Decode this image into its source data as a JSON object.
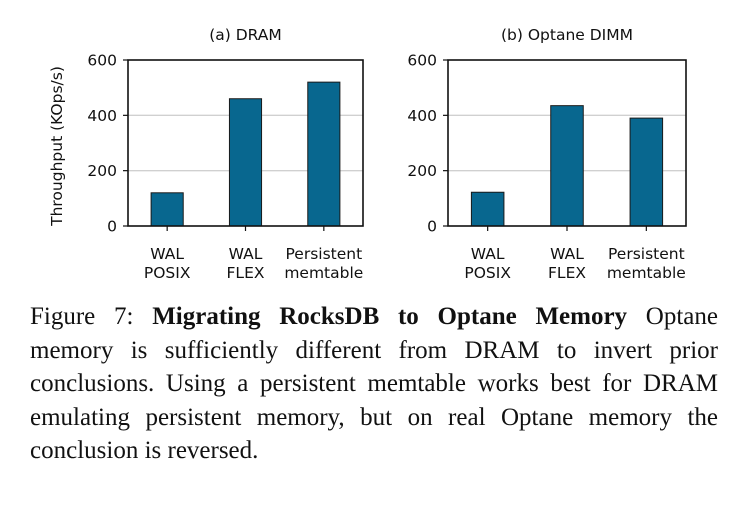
{
  "chart_data": [
    {
      "type": "bar",
      "title": "(a) DRAM",
      "ylabel": "Throughput (KOps/s)",
      "xlabel": "",
      "categories": [
        [
          "WAL",
          "POSIX"
        ],
        [
          "WAL",
          "FLEX"
        ],
        [
          "Persistent",
          "memtable"
        ]
      ],
      "values": [
        120,
        460,
        520
      ],
      "ylim": [
        0,
        600
      ],
      "yticks": [
        0,
        200,
        400,
        600
      ],
      "grid": true,
      "bar_color": "#08678f"
    },
    {
      "type": "bar",
      "title": "(b) Optane DIMM",
      "ylabel": "",
      "xlabel": "",
      "categories": [
        [
          "WAL",
          "POSIX"
        ],
        [
          "WAL",
          "FLEX"
        ],
        [
          "Persistent",
          "memtable"
        ]
      ],
      "values": [
        122,
        435,
        390
      ],
      "ylim": [
        0,
        600
      ],
      "yticks": [
        0,
        200,
        400,
        600
      ],
      "grid": true,
      "bar_color": "#08678f"
    }
  ],
  "caption": {
    "label": "Figure 7: ",
    "bold": "Migrating RocksDB to Optane Memory",
    "text": " Optane memory is sufficiently different from DRAM to invert prior conclusions. Using a persistent memtable works best for DRAM emulating persistent memory, but on real Optane memory the conclusion is reversed."
  }
}
